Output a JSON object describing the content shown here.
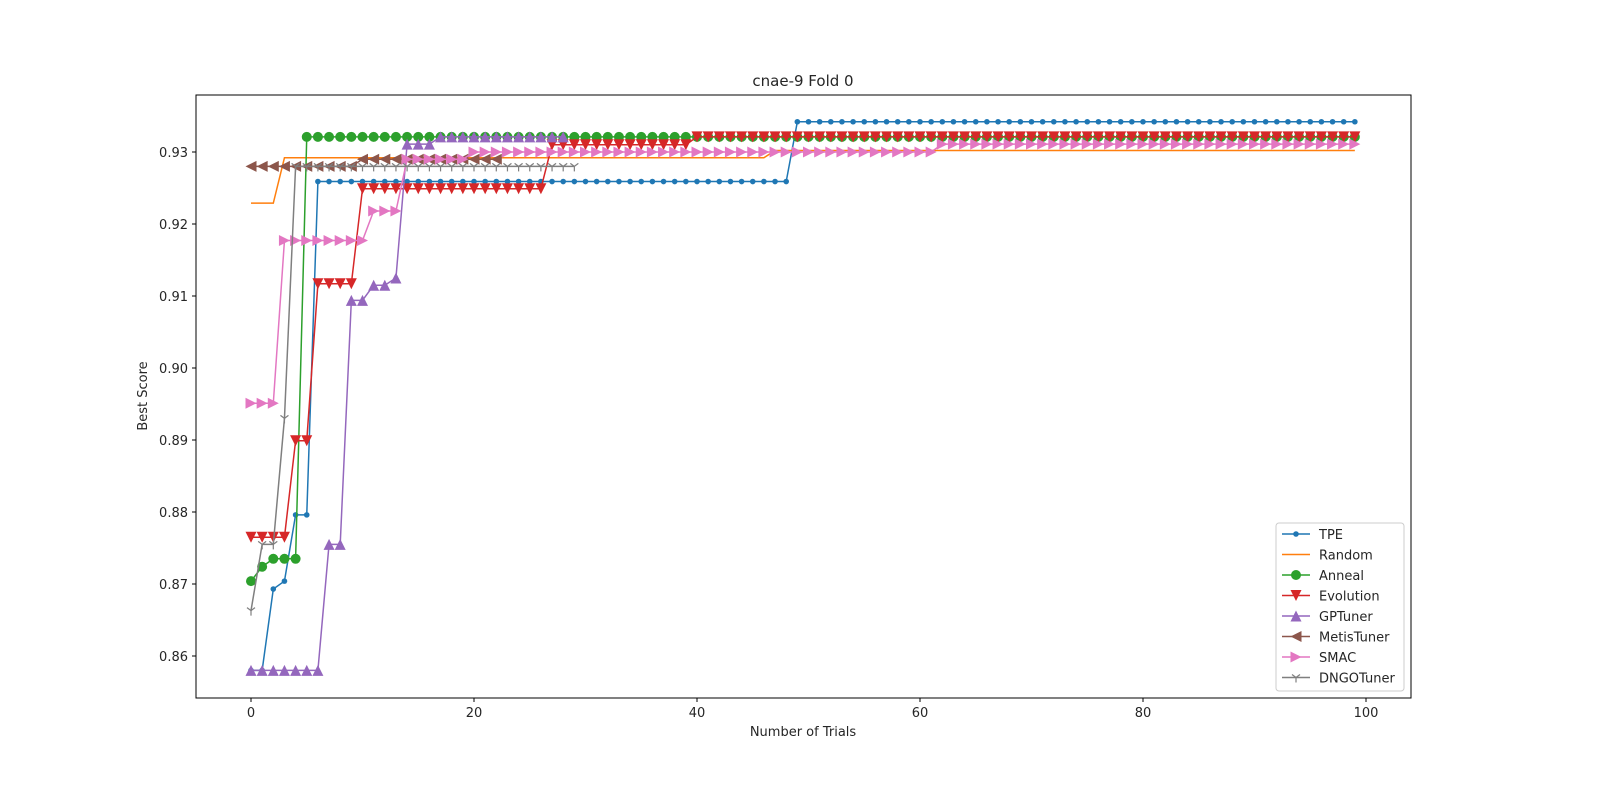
{
  "chart_data": {
    "type": "line",
    "title": "cnae-9 Fold 0",
    "xlabel": "Number of Trials",
    "ylabel": "Best Score",
    "xlim": [
      -5,
      104
    ],
    "ylim": [
      0.8545,
      0.938
    ],
    "xticks": [
      0,
      20,
      40,
      60,
      80,
      100
    ],
    "yticks": [
      0.86,
      0.87,
      0.88,
      0.89,
      0.9,
      0.91,
      0.92,
      0.93
    ],
    "ytick_labels": [
      "0.86",
      "0.87",
      "0.88",
      "0.89",
      "0.90",
      "0.91",
      "0.92",
      "0.93"
    ],
    "xtick_labels": [
      "0",
      "20",
      "40",
      "60",
      "80",
      "100"
    ],
    "grid": false,
    "legend_position": "lower right",
    "series": [
      {
        "name": "TPE",
        "color": "#1f77b4",
        "marker": "point",
        "steps": [
          [
            0,
            0.858
          ],
          [
            2,
            0.8693
          ],
          [
            3,
            0.8704
          ],
          [
            4,
            0.8796
          ],
          [
            6,
            0.9259
          ],
          [
            49,
            0.9342
          ]
        ],
        "last_x": 99
      },
      {
        "name": "Random",
        "color": "#ff7f0e",
        "marker": "none",
        "steps": [
          [
            0,
            0.9229
          ],
          [
            3,
            0.9292
          ],
          [
            47,
            0.9302
          ]
        ],
        "last_x": 99
      },
      {
        "name": "Anneal",
        "color": "#2ca02c",
        "marker": "circle",
        "steps": [
          [
            0,
            0.8704
          ],
          [
            1,
            0.8724
          ],
          [
            2,
            0.8735
          ],
          [
            5,
            0.9321
          ]
        ],
        "last_x": 99
      },
      {
        "name": "Evolution",
        "color": "#d62728",
        "marker": "triangle_down",
        "steps": [
          [
            0,
            0.8765
          ],
          [
            4,
            0.8899
          ],
          [
            6,
            0.9117
          ],
          [
            10,
            0.9249
          ],
          [
            27,
            0.931
          ],
          [
            40,
            0.9321
          ]
        ],
        "last_x": 99
      },
      {
        "name": "GPTuner",
        "color": "#9467bd",
        "marker": "triangle_up",
        "steps": [
          [
            0,
            0.858
          ],
          [
            7,
            0.8755
          ],
          [
            9,
            0.9094
          ],
          [
            11,
            0.9115
          ],
          [
            13,
            0.9125
          ],
          [
            14,
            0.9311
          ],
          [
            17,
            0.9321
          ]
        ],
        "last_x": 28
      },
      {
        "name": "MetisTuner",
        "color": "#8c564b",
        "marker": "triangle_left",
        "steps": [
          [
            0,
            0.928
          ],
          [
            10,
            0.929
          ]
        ],
        "last_x": 22
      },
      {
        "name": "SMAC",
        "color": "#e377c2",
        "marker": "triangle_right",
        "steps": [
          [
            0,
            0.8951
          ],
          [
            3,
            0.9177
          ],
          [
            11,
            0.9218
          ],
          [
            14,
            0.929
          ],
          [
            20,
            0.93
          ],
          [
            62,
            0.9311
          ]
        ],
        "last_x": 99
      },
      {
        "name": "DNGOTuner",
        "color": "#7f7f7f",
        "marker": "tri_down",
        "steps": [
          [
            0,
            0.8663
          ],
          [
            1,
            0.8755
          ],
          [
            3,
            0.893
          ],
          [
            4,
            0.928
          ]
        ],
        "last_x": 29
      }
    ]
  }
}
